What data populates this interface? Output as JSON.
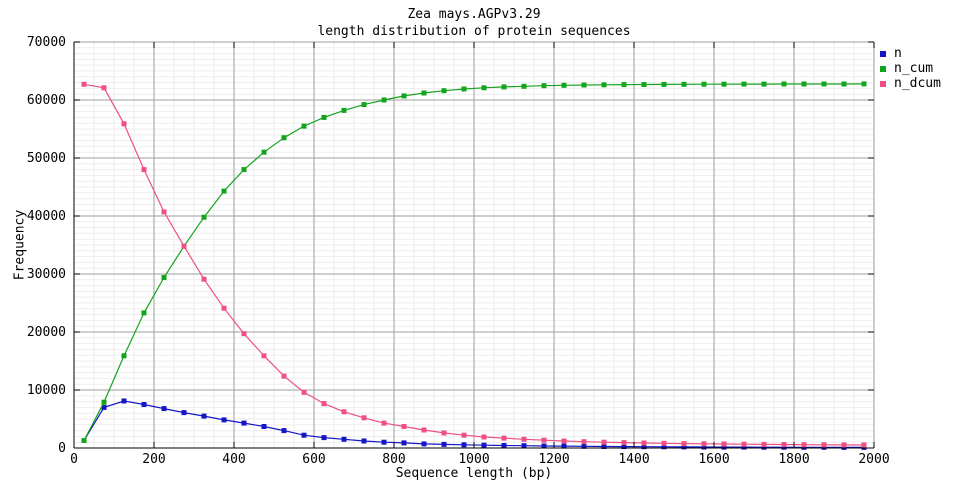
{
  "title": "Zea mays.AGPv3.29",
  "subtitle": "length distribution of protein sequences",
  "legend": {
    "items": [
      "n",
      "n_cum",
      "n_dcum"
    ]
  },
  "colors": {
    "n": "#1515c8",
    "n_cum": "#12a41c",
    "n_dcum": "#ef4f81",
    "grid_major": "#9c9c9c",
    "grid_minor": "#ededed",
    "axis": "#000000",
    "background": "#ffffff"
  },
  "chart_data": {
    "type": "line",
    "title": "Zea mays.AGPv3.29",
    "subtitle": "length distribution of protein sequences",
    "xlabel": "Sequence length (bp)",
    "ylabel": "Frequency",
    "bin_width": 50,
    "x": [
      25,
      75,
      125,
      175,
      225,
      275,
      325,
      375,
      425,
      475,
      525,
      575,
      625,
      675,
      725,
      775,
      825,
      875,
      925,
      975,
      1025,
      1075,
      1125,
      1175,
      1225,
      1275,
      1325,
      1375,
      1425,
      1475,
      1525,
      1575,
      1625,
      1675,
      1725,
      1775,
      1825,
      1875,
      1925,
      1975
    ],
    "series": [
      {
        "name": "n",
        "color": "#1515c8",
        "values": [
          1300,
          7000,
          8100,
          7500,
          6800,
          6100,
          5500,
          4850,
          4300,
          3700,
          3000,
          2200,
          1800,
          1500,
          1200,
          1000,
          880,
          700,
          620,
          550,
          480,
          430,
          390,
          350,
          320,
          290,
          265,
          240,
          220,
          200,
          185,
          170,
          160,
          150,
          140,
          130,
          120,
          115,
          110,
          105
        ]
      },
      {
        "name": "n_cum",
        "color": "#12a41c",
        "values": [
          1300,
          7900,
          15900,
          23300,
          29400,
          34800,
          39800,
          44300,
          48000,
          51000,
          53500,
          55500,
          57000,
          58200,
          59200,
          60000,
          60700,
          61200,
          61600,
          61900,
          62100,
          62250,
          62370,
          62460,
          62530,
          62580,
          62620,
          62650,
          62675,
          62695,
          62710,
          62722,
          62732,
          62740,
          62747,
          62753,
          62758,
          62762,
          62765,
          62768
        ]
      },
      {
        "name": "n_dcum",
        "color": "#ef4f81",
        "values": [
          62700,
          62100,
          55900,
          48000,
          40700,
          34800,
          29100,
          24100,
          19700,
          15900,
          12400,
          9600,
          7650,
          6250,
          5200,
          4300,
          3700,
          3100,
          2600,
          2200,
          1900,
          1700,
          1500,
          1350,
          1200,
          1090,
          1000,
          930,
          870,
          815,
          765,
          720,
          685,
          650,
          620,
          595,
          570,
          550,
          530,
          515
        ]
      }
    ],
    "xlim": [
      0,
      2000
    ],
    "ylim": [
      0,
      70000
    ],
    "x_ticks": [
      0,
      200,
      400,
      600,
      800,
      1000,
      1200,
      1400,
      1600,
      1800,
      2000
    ],
    "y_ticks": [
      0,
      10000,
      20000,
      30000,
      40000,
      50000,
      60000,
      70000
    ],
    "x_minor_step": 50,
    "y_minor_step": 1000,
    "grid": true,
    "legend_position": "top-right-outside"
  }
}
